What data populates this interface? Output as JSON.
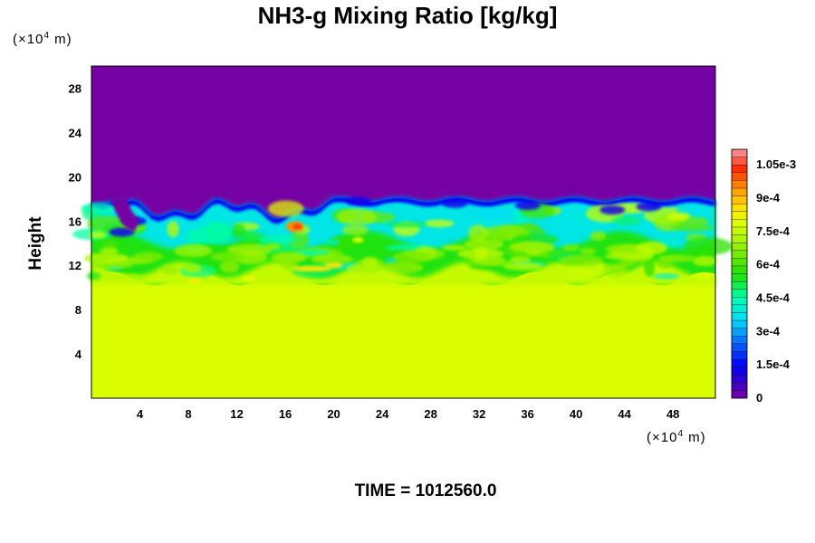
{
  "colors": {
    "background": "#ffffff",
    "top_layer": "#7500a3",
    "bottom_layer": "#dcff00",
    "mid_band": "#3ecf7a"
  },
  "chart_data": {
    "type": "heatmap",
    "title": "NH3-g Mixing Ratio [kg/kg]",
    "ylabel": "Height",
    "x_unit_label": "(×10",
    "x_unit_exp": "4",
    "x_unit_suffix": " m)",
    "y_unit_label": "(×10",
    "y_unit_exp": "4",
    "y_unit_suffix": " m)",
    "xlim": [
      0,
      51.5
    ],
    "ylim": [
      0,
      30
    ],
    "x_ticks": [
      "4",
      "8",
      "12",
      "16",
      "20",
      "24",
      "28",
      "32",
      "36",
      "40",
      "44",
      "48"
    ],
    "y_ticks": [
      "4",
      "8",
      "12",
      "16",
      "20",
      "24",
      "28"
    ],
    "colorbar": {
      "range": [
        0,
        0.00112
      ],
      "labels": [
        "0",
        "1.5e-4",
        "3e-4",
        "4.5e-4",
        "6e-4",
        "7.5e-4",
        "9e-4",
        "1.05e-3"
      ],
      "label_values": [
        0,
        0.00015,
        0.0003,
        0.00045,
        0.0006,
        0.00075,
        0.0009,
        0.00105
      ]
    },
    "field_summary": {
      "upper_region_value": 0,
      "lower_region_value": 0.0008,
      "mixing_layer_height_range": [
        11,
        18
      ]
    },
    "time_label": "TIME = 1012560.0"
  }
}
